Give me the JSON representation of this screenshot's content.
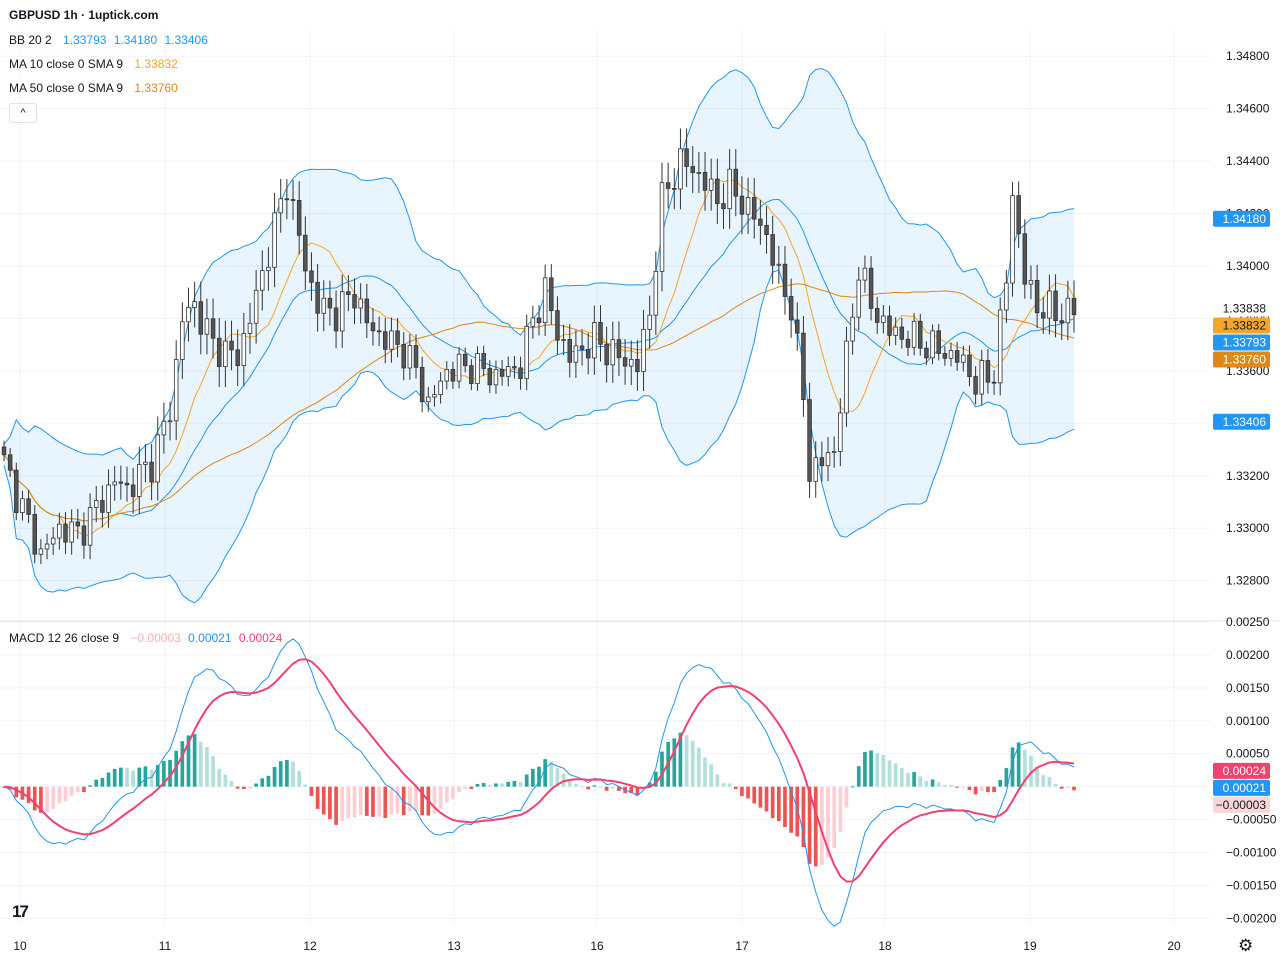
{
  "header": {
    "title": "GBPUSD 1h · 1uptick.com"
  },
  "indicators": {
    "bb": {
      "label": "BB 20 2",
      "values": [
        "1.33793",
        "1.34180",
        "1.33406"
      ],
      "color": "#2196f3"
    },
    "ma10": {
      "label": "MA 10 close 0 SMA 9",
      "value": "1.33832",
      "color": "#f5a623"
    },
    "ma50": {
      "label": "MA 50 close 0 SMA 9",
      "value": "1.33760",
      "color": "#e08714"
    },
    "macd": {
      "label": "MACD 12 26 close 9",
      "hist": "−0.00003",
      "macd": "0.00021",
      "signal": "0.00024",
      "hist_color": "#f7b2b2",
      "macd_color": "#2196f3",
      "signal_color": "#f2416f"
    }
  },
  "controls": {
    "collapse_label": "^",
    "logo_label": "17",
    "settings_icon": "gear-icon"
  },
  "chart_data": {
    "type": "candlestick",
    "symbol": "GBPUSD",
    "interval": "1h",
    "x_ticks": [
      "10",
      "11",
      "12",
      "13",
      "16",
      "17",
      "18",
      "19",
      "20"
    ],
    "price_axis": {
      "ylim": [
        1.3265,
        1.349
      ],
      "ticks": [
        "1.34800",
        "1.34600",
        "1.34400",
        "1.34200",
        "1.34000",
        "1.33800",
        "1.33600",
        "1.33400",
        "1.33200",
        "1.33000",
        "1.32800"
      ]
    },
    "macd_axis": {
      "ylim": [
        -0.0021,
        0.0025
      ],
      "ticks": [
        "0.00250",
        "0.00200",
        "0.00150",
        "0.00100",
        "0.00050",
        "0.00000",
        "−0.00050",
        "−0.00100",
        "−0.00150",
        "−0.00200"
      ]
    },
    "price_tags": [
      {
        "text": "1.34180",
        "value": 1.3418,
        "bg": "#2196f3",
        "fg": "#ffffff"
      },
      {
        "text": "1.33838",
        "value": 1.33838,
        "bg": "#ffffff",
        "fg": "#131722"
      },
      {
        "text": "1.33832",
        "value": 1.33832,
        "bg": "#f5a623",
        "fg": "#131722"
      },
      {
        "text": "1.33793",
        "value": 1.33793,
        "bg": "#2196f3",
        "fg": "#ffffff"
      },
      {
        "text": "1.33760",
        "value": 1.3376,
        "bg": "#e08714",
        "fg": "#ffffff"
      },
      {
        "text": "1.33406",
        "value": 1.33406,
        "bg": "#2196f3",
        "fg": "#ffffff"
      }
    ],
    "macd_tags": [
      {
        "text": "0.00024",
        "value": 0.00024,
        "bg": "#f2416f",
        "fg": "#ffffff"
      },
      {
        "text": "0.00021",
        "value": 0.00021,
        "bg": "#2196f3",
        "fg": "#ffffff"
      },
      {
        "text": "−0.00003",
        "value": -3e-05,
        "bg": "#fcd6d6",
        "fg": "#131722"
      }
    ],
    "keyframes": [
      [
        0,
        1.3325
      ],
      [
        6,
        1.329
      ],
      [
        9,
        1.33
      ],
      [
        12,
        1.3298
      ],
      [
        14,
        1.3304
      ],
      [
        18,
        1.3318
      ],
      [
        20,
        1.3315
      ],
      [
        24,
        1.3325
      ],
      [
        27,
        1.3345
      ],
      [
        29,
        1.338
      ],
      [
        31,
        1.3385
      ],
      [
        34,
        1.337
      ],
      [
        38,
        1.3365
      ],
      [
        41,
        1.3388
      ],
      [
        44,
        1.3415
      ],
      [
        46,
        1.3432
      ],
      [
        49,
        1.34
      ],
      [
        51,
        1.3385
      ],
      [
        54,
        1.3382
      ],
      [
        57,
        1.339
      ],
      [
        59,
        1.3378
      ],
      [
        62,
        1.3372
      ],
      [
        65,
        1.3368
      ],
      [
        67,
        1.336
      ],
      [
        69,
        1.3347
      ],
      [
        72,
        1.336
      ],
      [
        76,
        1.3362
      ],
      [
        80,
        1.3358
      ],
      [
        84,
        1.3362
      ],
      [
        86,
        1.338
      ],
      [
        88,
        1.339
      ],
      [
        90,
        1.3375
      ],
      [
        92,
        1.3365
      ],
      [
        96,
        1.3372
      ],
      [
        100,
        1.3365
      ],
      [
        103,
        1.3362
      ],
      [
        105,
        1.3382
      ],
      [
        107,
        1.3425
      ],
      [
        110,
        1.344
      ],
      [
        113,
        1.3435
      ],
      [
        116,
        1.3425
      ],
      [
        118,
        1.343
      ],
      [
        121,
        1.3422
      ],
      [
        124,
        1.3412
      ],
      [
        126,
        1.3395
      ],
      [
        128,
        1.3385
      ],
      [
        130,
        1.335
      ],
      [
        131,
        1.3322
      ],
      [
        133,
        1.3325
      ],
      [
        135,
        1.333
      ],
      [
        137,
        1.3365
      ],
      [
        139,
        1.34
      ],
      [
        141,
        1.3385
      ],
      [
        144,
        1.3375
      ],
      [
        148,
        1.3372
      ],
      [
        152,
        1.3368
      ],
      [
        155,
        1.3365
      ],
      [
        157,
        1.336
      ],
      [
        158,
        1.3355
      ],
      [
        161,
        1.336
      ],
      [
        163,
        1.3395
      ],
      [
        164,
        1.3428
      ],
      [
        166,
        1.3395
      ],
      [
        168,
        1.3385
      ],
      [
        171,
        1.3382
      ],
      [
        174,
        1.3383
      ]
    ]
  }
}
